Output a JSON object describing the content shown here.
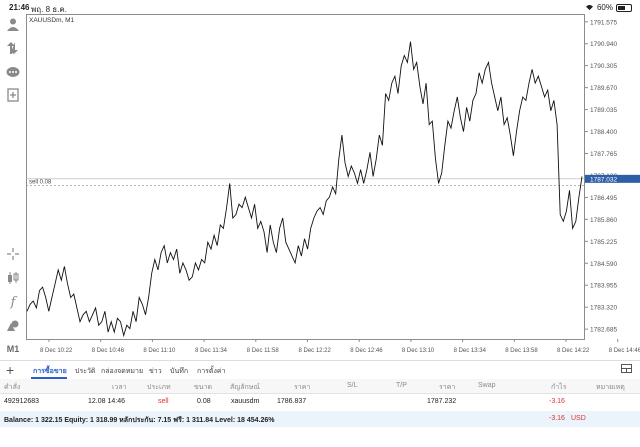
{
  "status_bar": {
    "time": "21:46",
    "date": "พฤ. 8 ธ.ค.",
    "battery": "60%",
    "battery_level": 0.6
  },
  "toolbar": {
    "icons": [
      "account-icon",
      "trade-arrows-icon",
      "chat-icon",
      "new-order-icon",
      "crosshair-icon",
      "candles-icon",
      "indicator-f-icon",
      "objects-icon"
    ],
    "timeframe": "M1"
  },
  "chart_data": {
    "type": "line",
    "symbol_title": "XAUUSDm, M1",
    "y_ticks": [
      "1791.575",
      "1790.940",
      "1790.305",
      "1789.670",
      "1789.035",
      "1788.400",
      "1787.765",
      "1787.130",
      "1786.495",
      "1785.860",
      "1785.225",
      "1784.590",
      "1783.955",
      "1783.320",
      "1782.685"
    ],
    "x_ticks": [
      "8 Dec 10:22",
      "8 Dec 10:46",
      "8 Dec 11:10",
      "8 Dec 11:34",
      "8 Dec 11:58",
      "8 Dec 12:22",
      "8 Dec 12:46",
      "8 Dec 13:10",
      "8 Dec 13:34",
      "8 Dec 13:58",
      "8 Dec 14:22",
      "8 Dec 14:46"
    ],
    "ylim": [
      1782.4,
      1791.8
    ],
    "current_price": "1787.032",
    "current_price_value": 1787.032,
    "sell_line_label": "sell 0.08",
    "sell_line_value": 1786.837,
    "series": [
      {
        "values": [
          1783.2,
          1783.4,
          1783.5,
          1783.3,
          1783.8,
          1783.9,
          1783.6,
          1783.2,
          1783.6,
          1784.0,
          1784.4,
          1784.1,
          1784.5,
          1784.0,
          1783.6,
          1783.7,
          1783.3,
          1782.9,
          1783.1,
          1783.2,
          1782.9,
          1783.1,
          1783.3,
          1782.8,
          1782.9,
          1783.2,
          1782.6,
          1782.9,
          1782.6,
          1783.0,
          1782.9,
          1782.5,
          1782.8,
          1782.7,
          1783.2,
          1782.9,
          1783.6,
          1783.4,
          1783.1,
          1783.6,
          1784.3,
          1784.7,
          1784.4,
          1784.9,
          1785.1,
          1784.6,
          1784.9,
          1784.7,
          1785.0,
          1784.3,
          1784.6,
          1784.4,
          1784.1,
          1784.2,
          1784.6,
          1784.4,
          1784.7,
          1784.6,
          1785.2,
          1785.0,
          1785.4,
          1785.1,
          1785.7,
          1785.6,
          1786.2,
          1786.9,
          1785.9,
          1786.0,
          1786.3,
          1786.2,
          1786.5,
          1786.2,
          1785.9,
          1786.3,
          1785.6,
          1785.8,
          1785.5,
          1784.9,
          1785.7,
          1785.2,
          1784.9,
          1785.6,
          1785.9,
          1785.2,
          1785.0,
          1784.8,
          1784.6,
          1785.1,
          1784.8,
          1785.3,
          1785.0,
          1785.6,
          1785.9,
          1786.1,
          1786.2,
          1786.0,
          1786.4,
          1786.5,
          1786.8,
          1786.6,
          1787.6,
          1788.3,
          1787.5,
          1787.1,
          1787.4,
          1787.2,
          1786.9,
          1787.3,
          1786.9,
          1787.3,
          1787.8,
          1787.1,
          1787.6,
          1788.3,
          1788.0,
          1789.5,
          1789.3,
          1789.8,
          1790.0,
          1789.5,
          1790.3,
          1790.6,
          1790.4,
          1791.0,
          1790.2,
          1790.4,
          1789.7,
          1789.2,
          1789.8,
          1788.6,
          1788.7,
          1787.6,
          1786.9,
          1787.2,
          1788.0,
          1788.7,
          1788.5,
          1789.0,
          1789.4,
          1788.8,
          1788.4,
          1789.1,
          1788.7,
          1789.3,
          1789.5,
          1790.1,
          1789.8,
          1790.2,
          1790.4,
          1789.8,
          1789.4,
          1789.0,
          1789.4,
          1788.6,
          1788.8,
          1788.3,
          1787.7,
          1788.4,
          1789.0,
          1789.4,
          1789.3,
          1789.8,
          1790.2,
          1789.8,
          1790.0,
          1789.7,
          1789.4,
          1789.6,
          1789.0,
          1789.3,
          1788.6,
          1786.0,
          1785.8,
          1786.1,
          1786.7,
          1785.6,
          1785.8,
          1786.5,
          1787.1
        ]
      }
    ]
  },
  "tabs": {
    "items": [
      "การซื้อขาย",
      "ประวัติ",
      "กล่องจดหมาย",
      "ข่าว",
      "บันทึก",
      "การตั้งค่า"
    ],
    "active_index": 0
  },
  "positions": {
    "headers": [
      "คำสั่ง",
      "เวลา",
      "ประเภท",
      "ขนาด",
      "สัญลักษณ์",
      "ราคา",
      "S/L",
      "T/P",
      "ราคา",
      "Swap",
      "กำไร",
      "หมายเหตุ"
    ],
    "rows": [
      [
        "492912683",
        "12.08 14:46",
        "sell",
        "0.08",
        "xauusdm",
        "1786.837",
        "",
        "",
        "1787.232",
        "",
        "-3.16",
        ""
      ]
    ]
  },
  "balance_bar": {
    "text": "Balance: 1 322.15 Equity: 1 318.99 หลักประกัน: 7.15 ฟรี: 1 311.84 Level: 18 454.26%",
    "profit": "-3.16",
    "currency": "USD"
  },
  "colors": {
    "accent": "#2b5fc7",
    "negative": "#e03030",
    "price_label": "#2f5ea8"
  }
}
